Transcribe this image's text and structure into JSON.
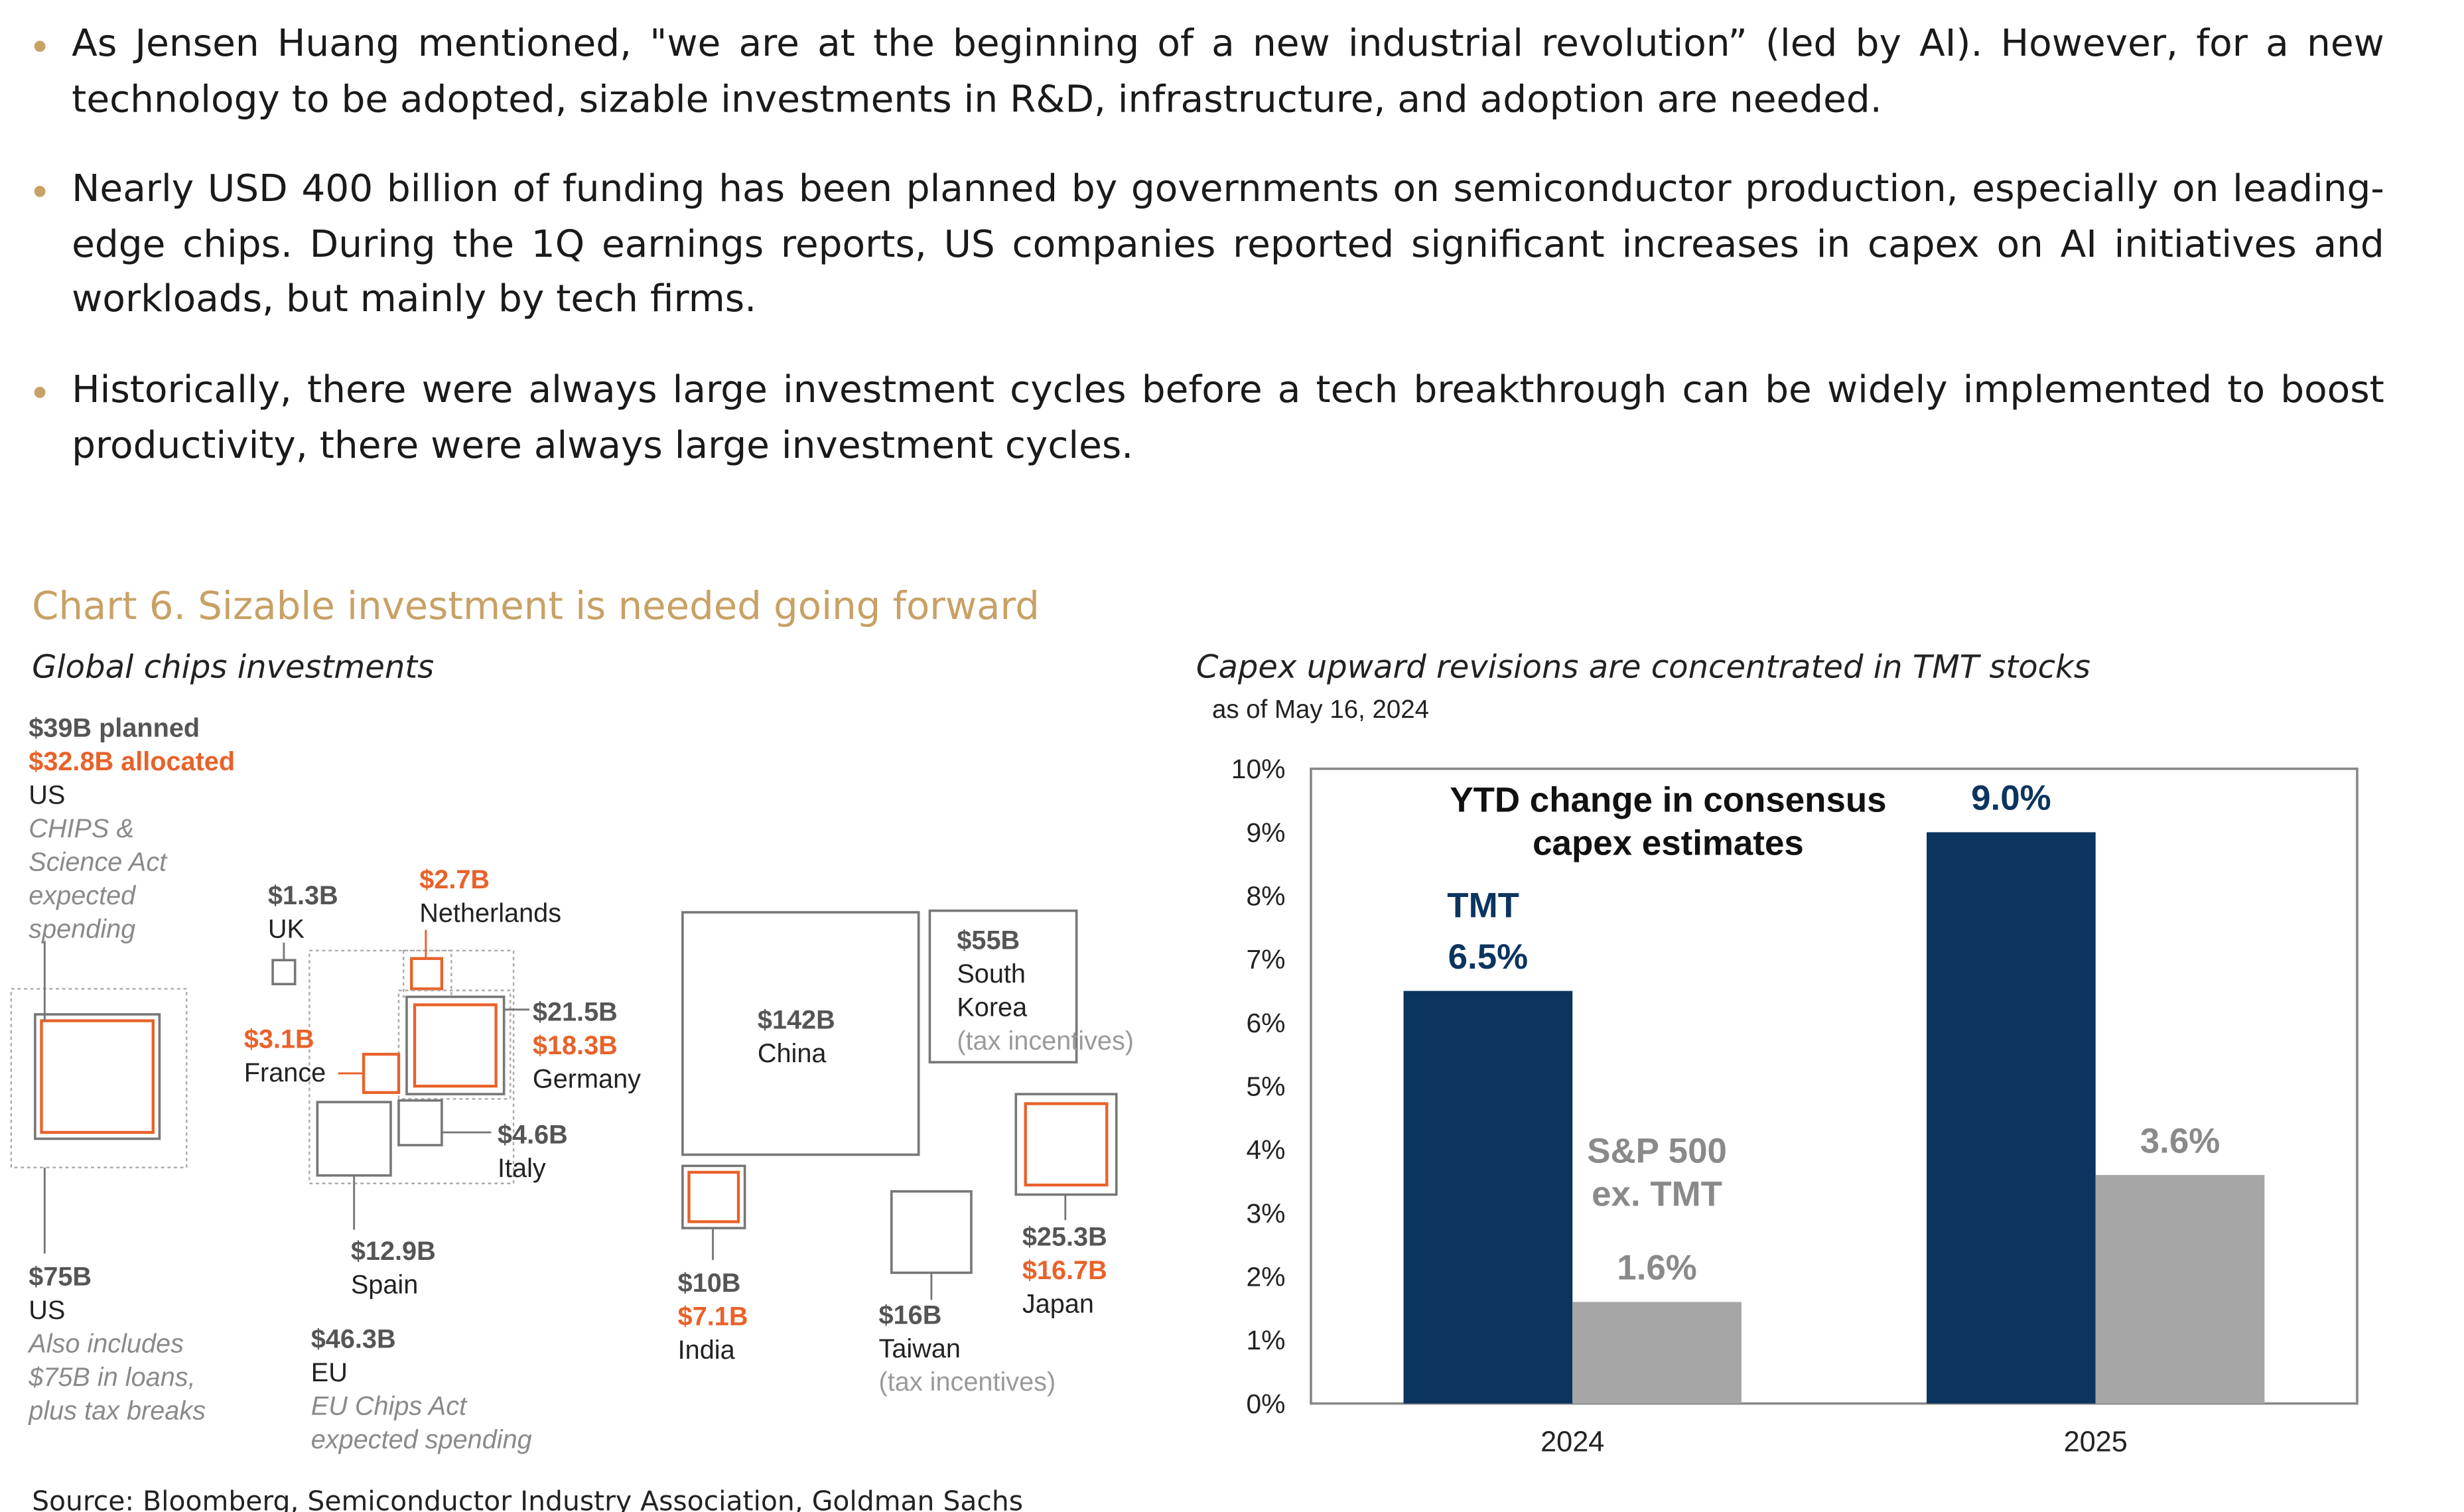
{
  "bullets": [
    "As Jensen Huang mentioned, \"we are at the beginning of a new industrial revolution” (led by AI). However, for a new technology to be adopted, sizable investments in R&D, infrastructure, and adoption are needed.",
    "Nearly USD 400 billion of funding has been planned by governments on semiconductor production, especially on leading-edge chips. During the 1Q earnings reports, US companies reported significant increases in capex on AI initiatives and workloads, but mainly by tech firms.",
    "Historically, there were always large investment cycles before a tech breakthrough can be widely implemented to boost productivity, there were always large investment cycles."
  ],
  "exhibit_title": "Chart 6. Sizable investment is needed going forward",
  "left_panel": {
    "subtitle": "Global chips investments",
    "items": [
      {
        "lines": [
          "$39B planned",
          "$32.8B allocated",
          "US",
          "CHIPS &",
          "Science Act",
          "expected",
          "spending"
        ]
      },
      {
        "lines": [
          "$1.3B",
          "UK"
        ]
      },
      {
        "lines": [
          "$2.7B",
          "Netherlands"
        ]
      },
      {
        "lines": [
          "$21.5B",
          "$18.3B",
          "Germany"
        ]
      },
      {
        "lines": [
          "$3.1B",
          "France"
        ]
      },
      {
        "lines": [
          "$4.6B",
          "Italy"
        ]
      },
      {
        "lines": [
          "$12.9B",
          "Spain"
        ]
      },
      {
        "lines": [
          "$46.3B",
          "EU",
          "EU Chips Act",
          "expected spending"
        ]
      },
      {
        "lines": [
          "$75B",
          "US",
          "Also includes",
          "$75B in loans,",
          "plus tax breaks"
        ]
      },
      {
        "lines": [
          "$142B",
          "China"
        ]
      },
      {
        "lines": [
          "$55B",
          "South",
          "Korea",
          "(tax incentives)"
        ]
      },
      {
        "lines": [
          "$10B",
          "$7.1B",
          "India"
        ]
      },
      {
        "lines": [
          "$16B",
          "Taiwan",
          "(tax incentives)"
        ]
      },
      {
        "lines": [
          "$25.3B",
          "$16.7B",
          "Japan"
        ]
      }
    ]
  },
  "chart_data": {
    "type": "bar",
    "subtitle": "Capex upward revisions are concentrated in TMT stocks",
    "note": "as of May 16, 2024",
    "title": "YTD change in consensus capex estimates",
    "categories": [
      "2024",
      "2025"
    ],
    "series": [
      {
        "name": "TMT",
        "color": "#0b355f",
        "values": [
          6.5,
          9.0
        ],
        "value_labels": [
          "6.5%",
          "9.0%"
        ]
      },
      {
        "name": "S&P 500 ex. TMT",
        "color": "#a6a6a6",
        "values": [
          1.6,
          3.6
        ],
        "value_labels": [
          "1.6%",
          "3.6%"
        ]
      }
    ],
    "ylim": [
      0,
      10
    ],
    "yticks": [
      {
        "value": 0,
        "label": "0%"
      },
      {
        "value": 1,
        "label": "1%"
      },
      {
        "value": 2,
        "label": "2%"
      },
      {
        "value": 3,
        "label": "3%"
      },
      {
        "value": 4,
        "label": "4%"
      },
      {
        "value": 5,
        "label": "5%"
      },
      {
        "value": 6,
        "label": "6%"
      },
      {
        "value": 7,
        "label": "7%"
      },
      {
        "value": 8,
        "label": "8%"
      },
      {
        "value": 9,
        "label": "9%"
      },
      {
        "value": 10,
        "label": "10%"
      }
    ]
  },
  "source": "Source: Bloomberg, Semiconductor Industry Association, Goldman Sachs"
}
